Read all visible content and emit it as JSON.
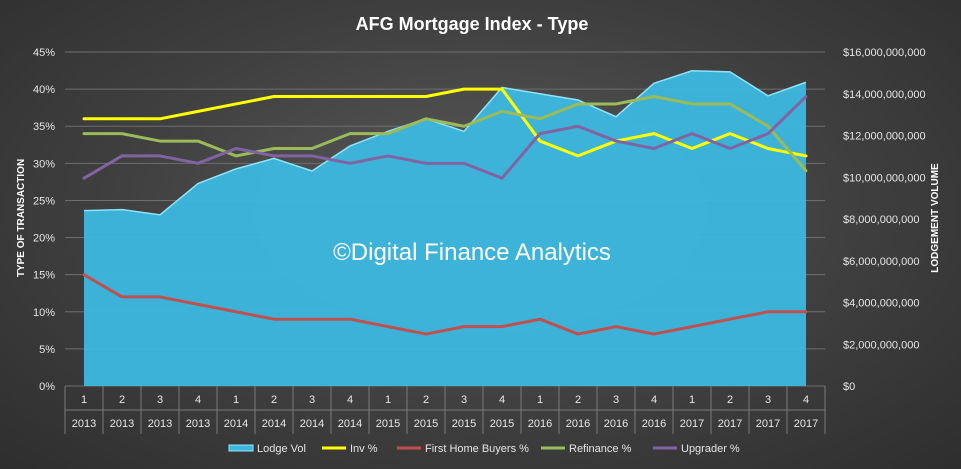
{
  "chart_data": {
    "type": "line",
    "title": "AFG Mortgage Index - Type",
    "ylabel": "TYPE OF TRANSACTION",
    "y2label": "LODGEMENT VOLUME",
    "watermark": "©Digital Finance Analytics",
    "ylim": [
      0,
      45
    ],
    "y_ticks": [
      "0%",
      "5%",
      "10%",
      "15%",
      "20%",
      "25%",
      "30%",
      "35%",
      "40%",
      "45%"
    ],
    "y2lim": [
      0,
      16000000000
    ],
    "y2_ticks": [
      "$0",
      "$2,000,000,000",
      "$4,000,000,000",
      "$6,000,000,000",
      "$8,000,000,000",
      "$10,000,000,000",
      "$12,000,000,000",
      "$14,000,000,000",
      "$16,000,000,000"
    ],
    "quarters": [
      "1",
      "2",
      "3",
      "4",
      "1",
      "2",
      "3",
      "4",
      "1",
      "2",
      "3",
      "4",
      "1",
      "2",
      "3",
      "4",
      "1",
      "2",
      "3",
      "4"
    ],
    "years": [
      "2013",
      "2013",
      "2013",
      "2013",
      "2014",
      "2014",
      "2014",
      "2014",
      "2015",
      "2015",
      "2015",
      "2015",
      "2016",
      "2016",
      "2016",
      "2016",
      "2017",
      "2017",
      "2017",
      "2017"
    ],
    "area": {
      "name": "Lodge Vol",
      "axis": "secondary",
      "color": "#3cb8e0",
      "values": [
        8400000000,
        8450000000,
        8200000000,
        9700000000,
        10400000000,
        10900000000,
        10300000000,
        11500000000,
        12200000000,
        12800000000,
        12200000000,
        14300000000,
        14000000000,
        13700000000,
        12900000000,
        14500000000,
        15100000000,
        15050000000,
        13900000000,
        14550000000
      ]
    },
    "series": [
      {
        "name": "Inv %",
        "color": "#ffff00",
        "values": [
          36,
          36,
          36,
          37,
          38,
          39,
          39,
          39,
          39,
          39,
          40,
          40,
          33,
          31,
          33,
          34,
          32,
          34,
          32,
          31
        ]
      },
      {
        "name": "First Home Buyers %",
        "color": "#c0504d",
        "values": [
          15,
          12,
          12,
          11,
          10,
          9,
          9,
          9,
          8,
          7,
          8,
          8,
          9,
          7,
          8,
          7,
          8,
          9,
          10,
          10
        ]
      },
      {
        "name": "Refinance %",
        "color": "#9bbb59",
        "values": [
          34,
          34,
          33,
          33,
          31,
          32,
          32,
          34,
          34,
          36,
          35,
          37,
          36,
          38,
          38,
          39,
          38,
          38,
          35,
          29
        ]
      },
      {
        "name": "Upgrader %",
        "color": "#8064a2",
        "values": [
          28,
          31,
          31,
          30,
          32,
          31,
          31,
          30,
          31,
          30,
          30,
          28,
          34,
          35,
          33,
          32,
          34,
          32,
          34,
          39
        ]
      }
    ],
    "legend_position": "bottom",
    "grid": true
  }
}
